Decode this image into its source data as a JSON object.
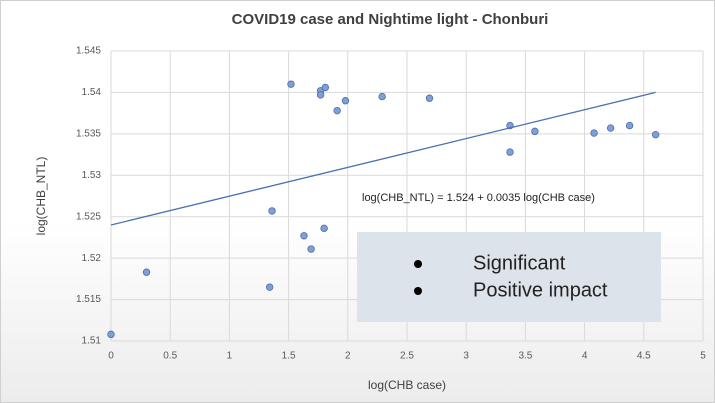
{
  "chart_data": {
    "type": "scatter",
    "title": "COVID19 case and Nightime light - Chonburi",
    "x_label": "log(CHB case)",
    "y_label": "log(CHB_NTL)",
    "series": [
      {
        "color": "#7f9fd6",
        "x": [
          0,
          0.3,
          1.34,
          1.36,
          1.52,
          1.63,
          1.69,
          1.77,
          1.77,
          1.81,
          1.8,
          1.91,
          1.98,
          2.29,
          2.69,
          3.37,
          3.37,
          3.58,
          4.08,
          4.22,
          4.38,
          4.6
        ],
        "values": [
          1.5108,
          1.5183,
          1.5165,
          1.5257,
          1.541,
          1.5227,
          1.5211,
          1.5402,
          1.5397,
          1.5406,
          1.5236,
          1.5378,
          1.539,
          1.5395,
          1.5393,
          1.536,
          1.5328,
          1.5353,
          1.5351,
          1.5357,
          1.536,
          1.5349
        ]
      }
    ],
    "trendline": {
      "color": "#4a72b0",
      "x": [
        0,
        4.6
      ],
      "values": [
        1.524,
        1.54
      ]
    },
    "annotation": "log(CHB_NTL) = 1.524 + 0.0035 log(CHB case)",
    "callout": [
      "Significant",
      "Positive impact"
    ],
    "xlim": [
      0,
      5
    ],
    "xticks": [
      0,
      0.5,
      1,
      1.5,
      2,
      2.5,
      3,
      3.5,
      4,
      4.5,
      5
    ],
    "ylim": [
      1.51,
      1.545
    ],
    "yticks": [
      1.51,
      1.515,
      1.52,
      1.525,
      1.53,
      1.535,
      1.54,
      1.545
    ],
    "grid": true
  }
}
